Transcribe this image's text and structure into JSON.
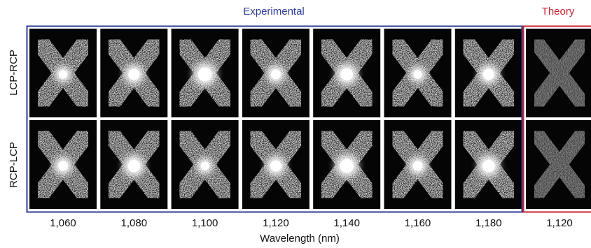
{
  "header": {
    "experimental": "Experimental",
    "theory": "Theory"
  },
  "rows": [
    "LCP-RCP",
    "RCP-LCP"
  ],
  "columns": [
    "1,060",
    "1,080",
    "1,100",
    "1,120",
    "1,140",
    "1,160",
    "1,180"
  ],
  "theory_column": "1,120",
  "x_label": "Wavelength (nm)"
}
